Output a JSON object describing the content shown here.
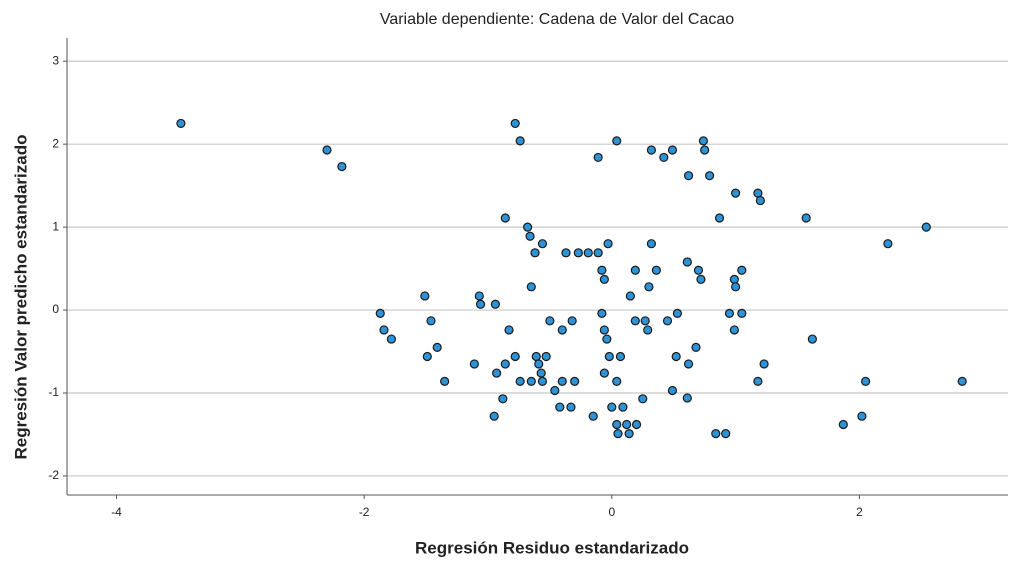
{
  "chart_data": {
    "type": "scatter",
    "title": "Variable dependiente: Cadena de Valor del Cacao",
    "x_label": "Regresión Residuo estandarizado",
    "y_label": "Regresión Valor predicho estandarizado",
    "x": [
      -3.48,
      -2.3,
      -2.18,
      -0.78,
      -0.74,
      0.04,
      -0.11,
      0.32,
      0.49,
      0.42,
      0.74,
      0.75,
      0.62,
      0.79,
      1.0,
      1.18,
      1.2,
      0.87,
      1.57,
      -0.86,
      -0.68,
      -0.66,
      2.54,
      2.23,
      -0.56,
      -0.62,
      -0.37,
      -0.27,
      -0.19,
      -0.11,
      -0.03,
      0.32,
      0.61,
      -0.08,
      -0.06,
      0.19,
      0.36,
      0.7,
      0.72,
      0.99,
      1.05,
      1.0,
      0.3,
      -0.65,
      -1.51,
      -1.07,
      -1.06,
      -0.94,
      0.15,
      -1.87,
      -1.46,
      -1.84,
      -1.78,
      -1.41,
      -1.49,
      -1.35,
      -0.83,
      -0.5,
      -0.4,
      -0.32,
      -0.08,
      -0.06,
      -0.04,
      -0.02,
      0.07,
      0.19,
      0.27,
      0.29,
      0.45,
      0.53,
      0.68,
      0.52,
      0.62,
      1.05,
      0.95,
      0.99,
      1.62,
      1.23,
      1.18,
      2.05,
      2.83,
      -0.78,
      -0.61,
      -0.53,
      -0.59,
      -0.57,
      -1.11,
      -0.86,
      -0.93,
      -0.74,
      -0.65,
      -0.56,
      -0.4,
      -0.3,
      -0.46,
      -0.06,
      0.04,
      0.49,
      0.61,
      -0.88,
      -0.42,
      -0.33,
      0.0,
      0.09,
      0.25,
      -0.15,
      -0.95,
      0.04,
      0.12,
      0.2,
      0.05,
      0.14,
      0.84,
      0.92,
      1.87,
      2.02
    ],
    "values": [
      2.25,
      1.93,
      1.73,
      2.25,
      2.04,
      2.04,
      1.84,
      1.93,
      1.93,
      1.84,
      2.04,
      1.93,
      1.62,
      1.62,
      1.41,
      1.41,
      1.32,
      1.11,
      1.11,
      1.11,
      1.0,
      0.89,
      1.0,
      0.8,
      0.8,
      0.69,
      0.69,
      0.69,
      0.69,
      0.69,
      0.8,
      0.8,
      0.58,
      0.48,
      0.37,
      0.48,
      0.48,
      0.48,
      0.37,
      0.37,
      0.48,
      0.28,
      0.28,
      0.28,
      0.17,
      0.17,
      0.07,
      0.07,
      0.17,
      -0.04,
      -0.13,
      -0.24,
      -0.35,
      -0.45,
      -0.56,
      -0.86,
      -0.24,
      -0.13,
      -0.24,
      -0.13,
      -0.04,
      -0.24,
      -0.35,
      -0.56,
      -0.56,
      -0.13,
      -0.13,
      -0.24,
      -0.13,
      -0.04,
      -0.45,
      -0.56,
      -0.65,
      -0.04,
      -0.04,
      -0.24,
      -0.35,
      -0.65,
      -0.86,
      -0.86,
      -0.86,
      -0.56,
      -0.56,
      -0.56,
      -0.65,
      -0.76,
      -0.65,
      -0.65,
      -0.76,
      -0.86,
      -0.86,
      -0.86,
      -0.86,
      -0.86,
      -0.97,
      -0.76,
      -0.86,
      -0.97,
      -1.06,
      -1.07,
      -1.17,
      -1.17,
      -1.17,
      -1.17,
      -1.07,
      -1.28,
      -1.28,
      -1.38,
      -1.38,
      -1.38,
      -1.49,
      -1.49,
      -1.49,
      -1.49,
      -1.38,
      -1.28
    ],
    "color": "#2e93d6",
    "edge_color": "#1a1a1a",
    "xlim": [
      -4.4,
      3.2
    ],
    "ylim": [
      -2.23,
      3.28
    ],
    "xticks": [
      -4,
      -2,
      0,
      2
    ],
    "yticks": [
      -2,
      -1,
      0,
      1,
      2,
      3
    ],
    "grid": "y"
  }
}
